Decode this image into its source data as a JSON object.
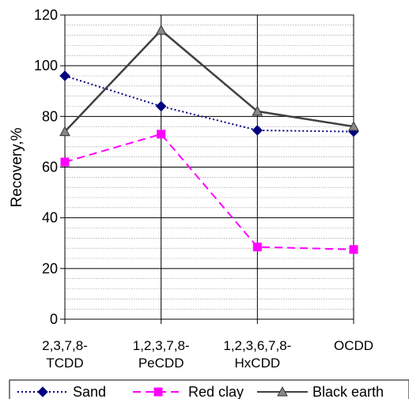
{
  "chart_data": {
    "type": "line",
    "categories": [
      [
        "2,3,7,8-",
        "TCDD"
      ],
      [
        "1,2,3,7,8-",
        "PeCDD"
      ],
      [
        "1,2,3,6,7,8-",
        "HxCDD"
      ],
      [
        "OCDD"
      ]
    ],
    "ylabel": "Recovery,%",
    "ylim": [
      0,
      120
    ],
    "yticks": [
      "0",
      "20",
      "40",
      "60",
      "80",
      "100",
      "120"
    ],
    "grid": true,
    "legend": "bottom",
    "series": [
      {
        "name": "Sand",
        "values": [
          96,
          84,
          74.5,
          74
        ],
        "color": "#000080",
        "marker": "diamond",
        "dash": "dotted"
      },
      {
        "name": "Red clay",
        "values": [
          62,
          73,
          28.5,
          27.5
        ],
        "color": "#ff00ff",
        "marker": "square",
        "dash": "dashed"
      },
      {
        "name": "Black earth",
        "values": [
          74,
          114,
          82,
          76
        ],
        "color": "#404040",
        "marker": "triangle",
        "dash": "solid"
      }
    ]
  }
}
